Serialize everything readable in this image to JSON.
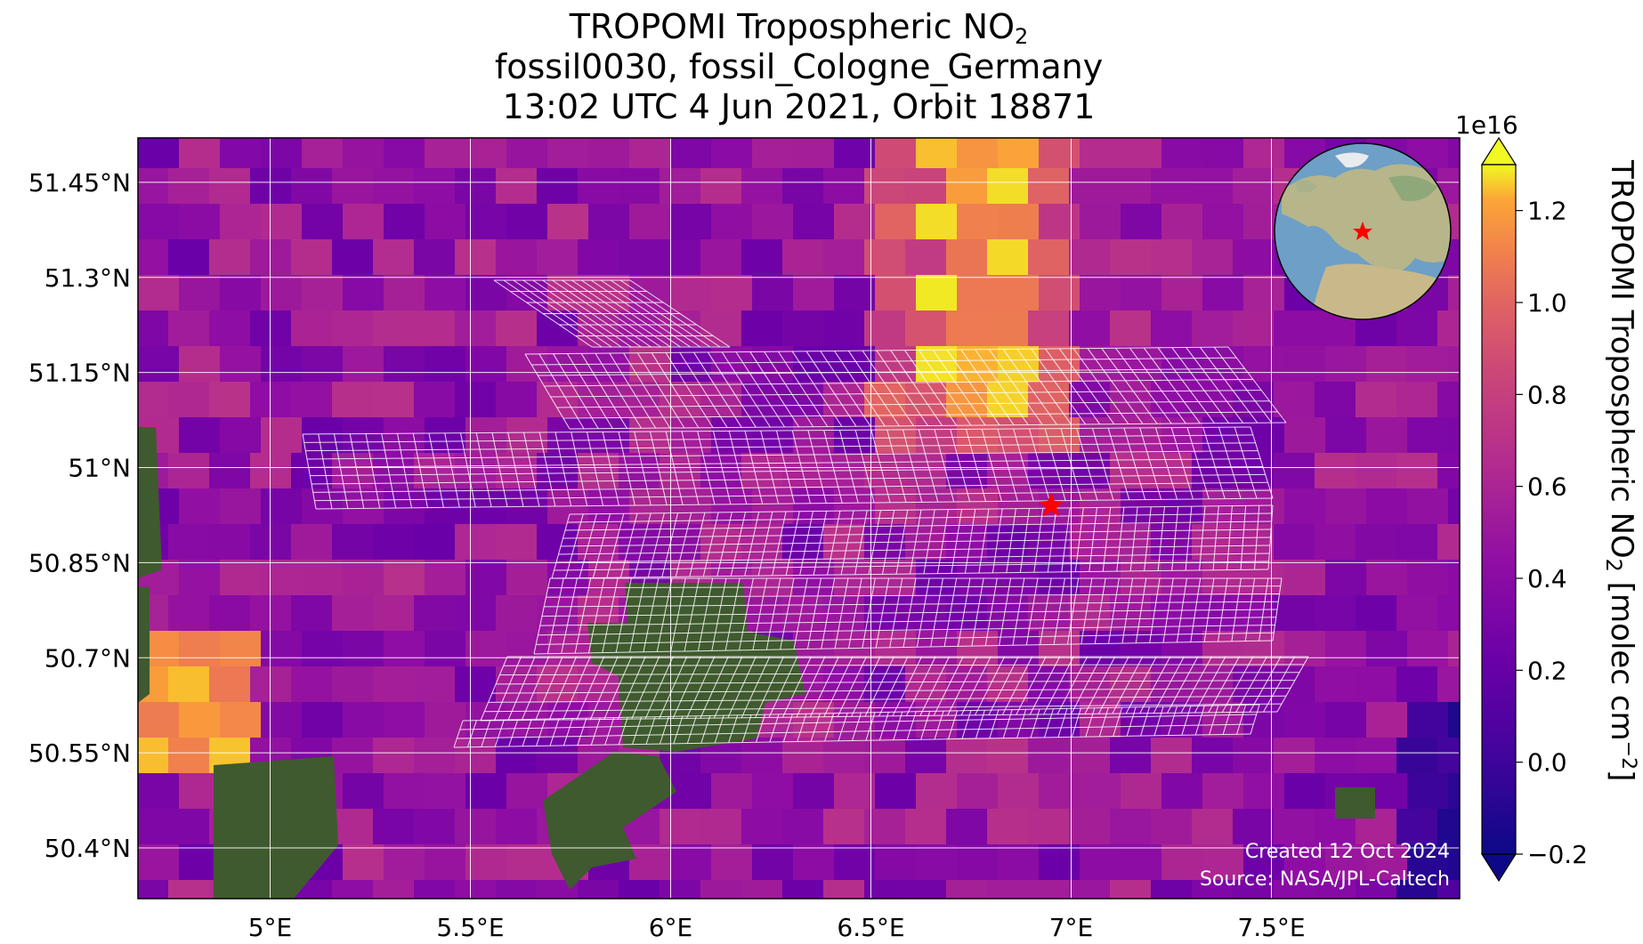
{
  "title": {
    "line1_prefix": "TROPOMI Tropospheric NO",
    "line1_sub": "2",
    "line2": "fossil0030, fossil_Cologne_Germany",
    "line3": "13:02 UTC 4 Jun 2021, Orbit 18871"
  },
  "map": {
    "lon_range": [
      4.67,
      7.97
    ],
    "lat_range": [
      50.32,
      51.52
    ],
    "lat_ticks": [
      {
        "value": 51.45,
        "label": "51.45°N"
      },
      {
        "value": 51.3,
        "label": "51.3°N"
      },
      {
        "value": 51.15,
        "label": "51.15°N"
      },
      {
        "value": 51.0,
        "label": "51°N"
      },
      {
        "value": 50.85,
        "label": "50.85°N"
      },
      {
        "value": 50.7,
        "label": "50.7°N"
      },
      {
        "value": 50.55,
        "label": "50.55°N"
      },
      {
        "value": 50.4,
        "label": "50.4°N"
      }
    ],
    "lon_ticks": [
      {
        "value": 5.0,
        "label": "5°E"
      },
      {
        "value": 5.5,
        "label": "5.5°E"
      },
      {
        "value": 6.0,
        "label": "6°E"
      },
      {
        "value": 6.5,
        "label": "6.5°E"
      },
      {
        "value": 7.0,
        "label": "7°E"
      },
      {
        "value": 7.5,
        "label": "7.5°E"
      }
    ],
    "grid": true,
    "target": {
      "lon": 6.95,
      "lat": 50.94,
      "marker": "red-star"
    },
    "plume": {
      "lon": 6.72,
      "description": ""
    },
    "inset": "globe-icon"
  },
  "colorbar": {
    "cmap": "plasma",
    "min": -0.2,
    "max": 1.3,
    "exponent_label": "1e16",
    "ticks": [
      "1.2",
      "1.0",
      "0.8",
      "0.6",
      "0.4",
      "0.2",
      "0.0",
      "−0.2"
    ],
    "tick_values": [
      1.2,
      1.0,
      0.8,
      0.6,
      0.4,
      0.2,
      0.0,
      -0.2
    ],
    "label_prefix": "TROPOMI Tropospheric NO",
    "label_sub": "2",
    "label_mid": " [molec cm",
    "label_sup": "−2",
    "label_suffix": "]",
    "extend": "both"
  },
  "credits": {
    "created": "Created 12 Oct 2024",
    "source": "Source: NASA/JPL-Caltech"
  },
  "colors": {
    "star": "#ff0000",
    "grid": "#ffffff",
    "land": "#3f5a2e"
  }
}
